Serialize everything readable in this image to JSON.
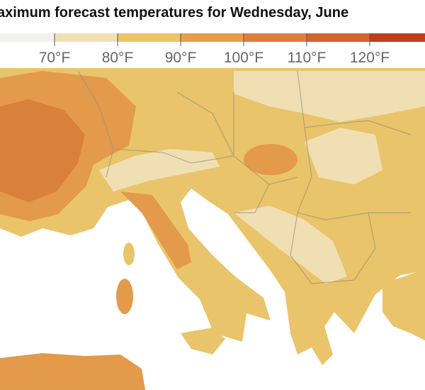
{
  "header": {
    "title": "aximum forecast temperatures for Wednesday, June"
  },
  "legend": {
    "colors": [
      "#f1f1ef",
      "#f0e0b6",
      "#ebc466",
      "#e79c48",
      "#dd7f3b",
      "#d2642f",
      "#bf3f1d"
    ],
    "labels": [
      "70°F",
      "80°F",
      "90°F",
      "100°F",
      "110°F",
      "120°F"
    ]
  }
}
